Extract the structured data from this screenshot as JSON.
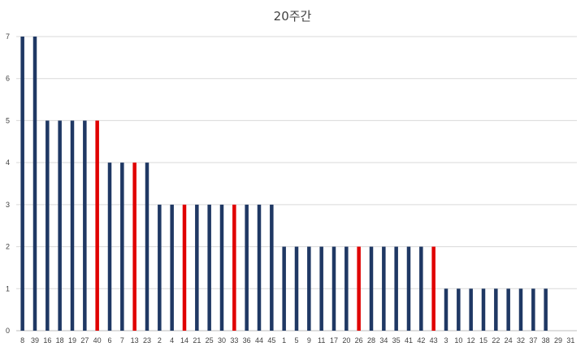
{
  "chart_data": {
    "type": "bar",
    "title": "20주간",
    "xlabel": "",
    "ylabel": "",
    "ylim": [
      0,
      7
    ],
    "yticks": [
      "0",
      "1",
      "2",
      "3",
      "4",
      "5",
      "6",
      "7"
    ],
    "grid": true,
    "legend": "none",
    "colors": {
      "default": "#1f3864",
      "highlight": "#e00000",
      "grid": "#d9d9d9",
      "text": "#404040"
    },
    "categories": [
      "8",
      "39",
      "16",
      "18",
      "19",
      "27",
      "40",
      "6",
      "7",
      "13",
      "23",
      "2",
      "4",
      "14",
      "21",
      "25",
      "30",
      "33",
      "36",
      "44",
      "45",
      "1",
      "5",
      "9",
      "11",
      "17",
      "20",
      "26",
      "28",
      "34",
      "35",
      "41",
      "42",
      "43",
      "3",
      "10",
      "12",
      "15",
      "22",
      "24",
      "32",
      "37",
      "38",
      "29",
      "31"
    ],
    "values": [
      7,
      7,
      5,
      5,
      5,
      5,
      5,
      4,
      4,
      4,
      4,
      3,
      3,
      3,
      3,
      3,
      3,
      3,
      3,
      3,
      3,
      2,
      2,
      2,
      2,
      2,
      2,
      2,
      2,
      2,
      2,
      2,
      2,
      2,
      1,
      1,
      1,
      1,
      1,
      1,
      1,
      1,
      1,
      0,
      0
    ],
    "highlighted": [
      "40",
      "13",
      "14",
      "33",
      "26",
      "43"
    ]
  }
}
